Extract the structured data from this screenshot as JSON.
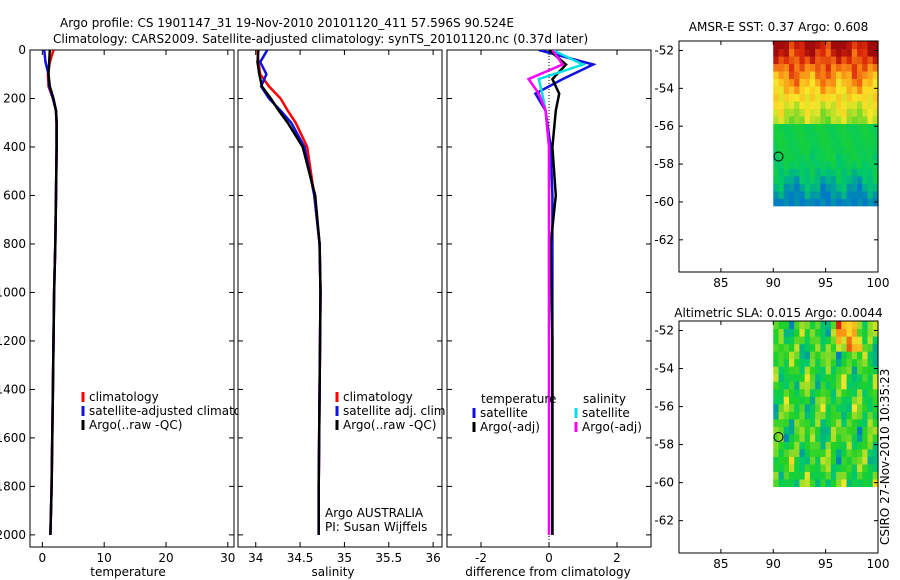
{
  "title": {
    "line1": "Argo profile: CS 1901147_31 19-Nov-2010 20101120_411 57.596S 90.524E",
    "line2": "Climatology: CARS2009. Satellite-adjusted climatology: synTS_20101120.nc (0.37d later)"
  },
  "colors": {
    "red": "#ff0000",
    "blue": "#1010e0",
    "black": "#000000",
    "cyan": "#00e0e0",
    "magenta": "#ff00ff"
  },
  "chart_data": [
    {
      "type": "line",
      "id": "temperature",
      "xlabel": "temperature",
      "xlim": [
        -2,
        31
      ],
      "ylim": [
        0,
        2050
      ],
      "y_reversed": true,
      "xticks": [
        0,
        10,
        20,
        30
      ],
      "yticks": [
        0,
        200,
        400,
        600,
        800,
        1000,
        1200,
        1400,
        1600,
        1800,
        2000
      ],
      "legend": [
        "climatology",
        "satellite-adjusted climatolog",
        "Argo(..raw -QC)"
      ],
      "series": [
        {
          "name": "climatology",
          "color": "red",
          "x": [
            1.8,
            1.2,
            0.9,
            1.0,
            1.7,
            2.2,
            2.3,
            2.3,
            2.2,
            2.1,
            1.9,
            1.7,
            1.5,
            1.3
          ],
          "y": [
            0,
            50,
            100,
            150,
            200,
            250,
            300,
            400,
            600,
            800,
            1000,
            1400,
            1800,
            2000
          ]
        },
        {
          "name": "satellite-adjusted climatology",
          "color": "blue",
          "x": [
            0.3,
            0.5,
            1.0,
            1.1,
            1.7,
            2.2,
            2.3,
            2.3,
            2.2,
            2.1,
            1.9,
            1.7,
            1.5,
            1.3
          ],
          "y": [
            0,
            50,
            100,
            150,
            200,
            250,
            300,
            400,
            600,
            800,
            1000,
            1400,
            1800,
            2000
          ]
        },
        {
          "name": "Argo(..raw -QC)",
          "color": "black",
          "x": [
            1.2,
            1.1,
            1.0,
            1.2,
            1.8,
            2.2,
            2.3,
            2.3,
            2.2,
            2.1,
            1.9,
            1.7,
            1.5,
            1.3
          ],
          "y": [
            0,
            50,
            100,
            150,
            200,
            250,
            300,
            400,
            600,
            800,
            1000,
            1400,
            1800,
            2000
          ]
        }
      ]
    },
    {
      "type": "line",
      "id": "salinity",
      "xlabel": "salinity",
      "xlim": [
        33.8,
        36.1
      ],
      "ylim": [
        0,
        2050
      ],
      "y_reversed": true,
      "xticks": [
        34,
        34.5,
        35,
        35.5,
        36
      ],
      "tick_labels": [
        "34",
        "34.5",
        "35",
        "35.5",
        "36"
      ],
      "legend": [
        "climatology",
        "satellite adj. clim.",
        "Argo(..raw -QC)"
      ],
      "annotation": [
        "Argo AUSTRALIA",
        "PI: Susan Wijffels"
      ],
      "series": [
        {
          "name": "climatology",
          "color": "red",
          "x": [
            34.02,
            34.03,
            34.05,
            34.15,
            34.28,
            34.36,
            34.45,
            34.58,
            34.66,
            34.72,
            34.73,
            34.72,
            34.71,
            34.71
          ],
          "y": [
            0,
            50,
            100,
            150,
            200,
            250,
            300,
            400,
            600,
            800,
            1000,
            1400,
            1800,
            2000
          ]
        },
        {
          "name": "satellite adj. clim.",
          "color": "blue",
          "x": [
            34.13,
            34.05,
            34.12,
            34.06,
            34.15,
            34.28,
            34.4,
            34.55,
            34.66,
            34.72,
            34.73,
            34.72,
            34.71,
            34.71
          ],
          "y": [
            0,
            50,
            100,
            150,
            200,
            250,
            300,
            400,
            600,
            800,
            1000,
            1400,
            1800,
            2000
          ]
        },
        {
          "name": "Argo(..raw -QC)",
          "color": "black",
          "x": [
            34.03,
            34.02,
            34.04,
            34.07,
            34.17,
            34.26,
            34.36,
            34.53,
            34.67,
            34.72,
            34.73,
            34.72,
            34.71,
            34.71
          ],
          "y": [
            0,
            50,
            100,
            150,
            200,
            250,
            300,
            400,
            600,
            800,
            1000,
            1400,
            1800,
            2000
          ]
        }
      ]
    },
    {
      "type": "line",
      "id": "difference",
      "xlabel": "difference from climatology",
      "xlim": [
        -3,
        3
      ],
      "ylim": [
        0,
        2050
      ],
      "y_reversed": true,
      "xticks": [
        -2,
        0,
        2
      ],
      "legend_titles": [
        "temperature",
        "salinity"
      ],
      "legend": [
        "satellite",
        "Argo(-adj)",
        "satellite",
        "Argo(-adj)"
      ],
      "series": [
        {
          "name": "temperature satellite",
          "color": "blue",
          "x": [
            -0.3,
            1.3,
            0.4,
            -0.4,
            -0.1,
            0.05,
            0.1,
            0.1,
            0.1,
            0.1,
            0.1
          ],
          "y": [
            0,
            60,
            120,
            180,
            250,
            400,
            600,
            800,
            1200,
            1600,
            2000
          ]
        },
        {
          "name": "temperature Argo(-adj)",
          "color": "black",
          "x": [
            0.0,
            0.5,
            0.1,
            0.3,
            0.2,
            0.1,
            0.2,
            0.05,
            0.1,
            0.1,
            0.1
          ],
          "y": [
            0,
            60,
            120,
            180,
            250,
            400,
            600,
            800,
            1200,
            1600,
            2000
          ]
        },
        {
          "name": "salinity satellite",
          "color": "cyan",
          "x": [
            0.1,
            1.0,
            -0.3,
            -0.2,
            -0.1,
            0.0,
            0.0,
            0.0,
            0.0,
            0.0,
            0.0
          ],
          "y": [
            0,
            60,
            120,
            180,
            250,
            400,
            600,
            800,
            1200,
            1600,
            2000
          ]
        },
        {
          "name": "salinity Argo(-adj)",
          "color": "magenta",
          "x": [
            0.1,
            0.4,
            -0.6,
            -0.3,
            -0.1,
            0.0,
            0.0,
            0.0,
            0.0,
            0.0,
            0.0
          ],
          "y": [
            0,
            60,
            120,
            180,
            250,
            400,
            600,
            800,
            1200,
            1600,
            2000
          ]
        }
      ]
    },
    {
      "type": "heatmap",
      "id": "sst_map",
      "title": "AMSR-E SST: 0.37 Argo: 0.608",
      "xlim": [
        81,
        100
      ],
      "ylim": [
        -63.7,
        -51.5
      ],
      "xticks": [
        85,
        90,
        95,
        100
      ],
      "yticks": [
        -52,
        -54,
        -56,
        -58,
        -60,
        -62
      ],
      "data_extent": [
        [
          90,
          100
        ],
        [
          -60.2,
          -51.5
        ]
      ],
      "argo_location": [
        90.5,
        -57.6
      ]
    },
    {
      "type": "heatmap",
      "id": "sla_map",
      "title": "Altimetric SLA: 0.015 Argo: 0.0044",
      "xlim": [
        81,
        100
      ],
      "ylim": [
        -63.7,
        -51.5
      ],
      "xticks": [
        85,
        90,
        95,
        100
      ],
      "yticks": [
        -52,
        -54,
        -56,
        -58,
        -60,
        -62
      ],
      "data_extent": [
        [
          90,
          100
        ],
        [
          -60.2,
          -51.5
        ]
      ],
      "argo_location": [
        90.5,
        -57.6
      ]
    }
  ],
  "footer": {
    "stamp": "CSIRO 27-Nov-2010 10:35:23"
  }
}
